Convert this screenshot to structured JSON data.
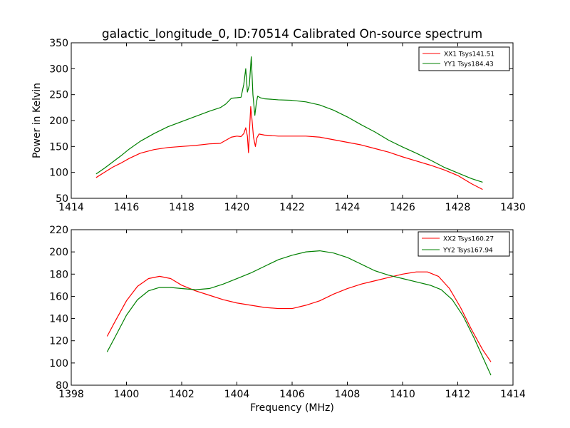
{
  "chart_data": [
    {
      "type": "line",
      "title": "galactic_longitude_0, ID:70514 Calibrated On-source spectrum",
      "xlabel": "",
      "ylabel": "Power in Kelvin",
      "xlim": [
        1414,
        1430
      ],
      "ylim": [
        50,
        350
      ],
      "xticks": [
        1414,
        1416,
        1418,
        1420,
        1422,
        1424,
        1426,
        1428,
        1430
      ],
      "yticks": [
        50,
        100,
        150,
        200,
        250,
        300,
        350
      ],
      "grid": false,
      "legend_position": "top-right",
      "series": [
        {
          "name": "XX1 Tsys141.51",
          "color": "#ff0000",
          "x": [
            1414.9,
            1415.2,
            1415.5,
            1415.8,
            1416.1,
            1416.5,
            1417.0,
            1417.5,
            1418.0,
            1418.5,
            1419.0,
            1419.4,
            1419.6,
            1419.8,
            1420.0,
            1420.15,
            1420.25,
            1420.32,
            1420.38,
            1420.42,
            1420.47,
            1420.5,
            1420.55,
            1420.6,
            1420.67,
            1420.72,
            1420.8,
            1421.0,
            1421.5,
            1422.0,
            1422.5,
            1423.0,
            1423.5,
            1424.0,
            1424.5,
            1425.0,
            1425.5,
            1426.0,
            1426.5,
            1427.0,
            1427.5,
            1428.0,
            1428.5,
            1428.9
          ],
          "y": [
            90,
            100,
            110,
            118,
            127,
            137,
            144,
            148,
            150,
            152,
            155,
            156,
            162,
            168,
            170,
            169,
            175,
            186,
            170,
            138,
            195,
            227,
            200,
            168,
            150,
            166,
            174,
            172,
            170,
            170,
            170,
            168,
            163,
            158,
            153,
            146,
            139,
            130,
            122,
            114,
            105,
            94,
            78,
            67
          ]
        },
        {
          "name": "YY1 Tsys184.43",
          "color": "#008000",
          "x": [
            1414.9,
            1415.2,
            1415.5,
            1415.8,
            1416.1,
            1416.5,
            1417.0,
            1417.5,
            1418.0,
            1418.5,
            1419.0,
            1419.4,
            1419.6,
            1419.8,
            1420.0,
            1420.15,
            1420.25,
            1420.32,
            1420.38,
            1420.45,
            1420.52,
            1420.58,
            1420.65,
            1420.7,
            1420.75,
            1420.85,
            1421.0,
            1421.5,
            1422.0,
            1422.5,
            1423.0,
            1423.5,
            1424.0,
            1424.5,
            1425.0,
            1425.5,
            1426.0,
            1426.5,
            1427.0,
            1427.5,
            1428.0,
            1428.5,
            1428.9
          ],
          "y": [
            97,
            108,
            120,
            132,
            145,
            160,
            175,
            188,
            198,
            208,
            218,
            225,
            232,
            243,
            244,
            245,
            270,
            300,
            255,
            268,
            323,
            250,
            210,
            232,
            247,
            244,
            242,
            240,
            239,
            236,
            230,
            220,
            207,
            192,
            178,
            162,
            149,
            137,
            124,
            110,
            99,
            88,
            81
          ]
        }
      ]
    },
    {
      "type": "line",
      "title": "",
      "xlabel": "Frequency (MHz)",
      "ylabel": "",
      "xlim": [
        1398,
        1414
      ],
      "ylim": [
        80,
        220
      ],
      "xticks": [
        1398,
        1400,
        1402,
        1404,
        1406,
        1408,
        1410,
        1412,
        1414
      ],
      "yticks": [
        80,
        100,
        120,
        140,
        160,
        180,
        200,
        220
      ],
      "grid": false,
      "legend_position": "top-right",
      "series": [
        {
          "name": "XX2 Tsys160.27",
          "color": "#ff0000",
          "x": [
            1399.3,
            1399.6,
            1400.0,
            1400.4,
            1400.8,
            1401.2,
            1401.6,
            1402.0,
            1402.5,
            1403.0,
            1403.5,
            1404.0,
            1404.5,
            1405.0,
            1405.5,
            1406.0,
            1406.5,
            1407.0,
            1407.5,
            1408.0,
            1408.5,
            1409.0,
            1409.5,
            1410.0,
            1410.5,
            1410.9,
            1411.3,
            1411.7,
            1412.1,
            1412.5,
            1412.9,
            1413.2
          ],
          "y": [
            124,
            138,
            156,
            169,
            176,
            178,
            176,
            170,
            165,
            161,
            157,
            154,
            152,
            150,
            149,
            149,
            152,
            156,
            162,
            167,
            171,
            174,
            177,
            180,
            182,
            182,
            178,
            167,
            150,
            130,
            112,
            101
          ]
        },
        {
          "name": "YY2 Tsys167.94",
          "color": "#008000",
          "x": [
            1399.3,
            1399.6,
            1400.0,
            1400.4,
            1400.8,
            1401.2,
            1401.6,
            1402.0,
            1402.5,
            1403.0,
            1403.5,
            1404.0,
            1404.5,
            1405.0,
            1405.5,
            1406.0,
            1406.5,
            1407.0,
            1407.5,
            1408.0,
            1408.5,
            1409.0,
            1409.5,
            1410.0,
            1410.5,
            1411.0,
            1411.4,
            1411.8,
            1412.2,
            1412.6,
            1413.0,
            1413.2
          ],
          "y": [
            110,
            124,
            143,
            157,
            165,
            168,
            168,
            167,
            166,
            167,
            171,
            176,
            181,
            187,
            193,
            197,
            200,
            201,
            199,
            195,
            189,
            183,
            179,
            176,
            173,
            170,
            166,
            157,
            142,
            122,
            100,
            89
          ]
        }
      ]
    }
  ]
}
